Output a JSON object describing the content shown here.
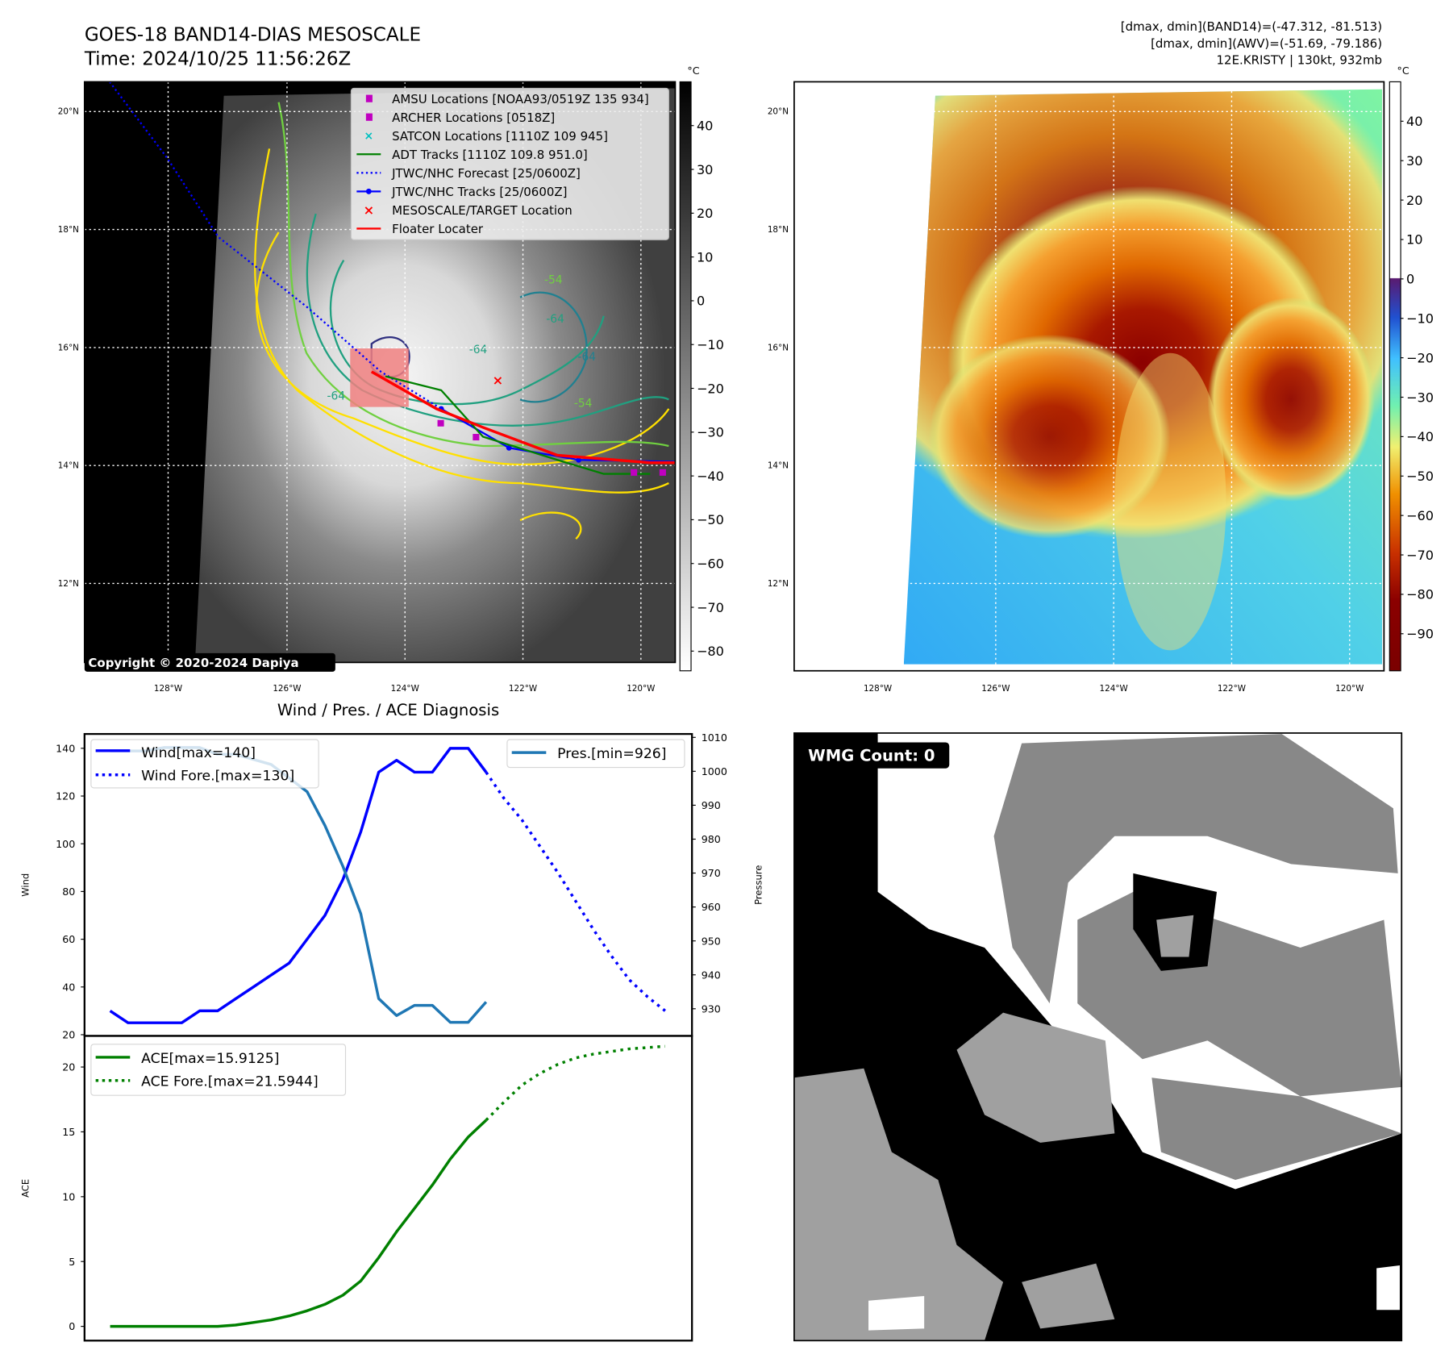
{
  "header": {
    "title": "GOES-18 BAND14-DIAS MESOSCALE",
    "time": "Time: 2024/10/25 11:56:26Z",
    "stats_band14": "[dmax, dmin](BAND14)=(-47.312, -81.513)",
    "stats_awv": "[dmax, dmin](AWV)=(-51.69, -79.186)",
    "storm": "12E.KRISTY | 130kt, 932mb"
  },
  "map": {
    "lat_labels": [
      "20°N",
      "18°N",
      "16°N",
      "14°N",
      "12°N"
    ],
    "lon_labels": [
      "128°W",
      "126°W",
      "124°W",
      "122°W",
      "120°W"
    ],
    "colorbar_unit": "°C",
    "gray_colorbar_ticks": [
      "40",
      "30",
      "20",
      "10",
      "0",
      "−10",
      "−20",
      "−30",
      "−40",
      "−50",
      "−60",
      "−70",
      "−80"
    ],
    "color_colorbar_ticks": [
      "40",
      "30",
      "20",
      "10",
      "0",
      "−10",
      "−20",
      "−30",
      "−40",
      "−50",
      "−60",
      "−70",
      "−80",
      "−90"
    ],
    "copyright": "Copyright © 2020-2024 Dapiya",
    "legend": [
      {
        "label": "AMSU Locations [NOAA93/0519Z 135 934]",
        "color": "#c000c0"
      },
      {
        "label": "ARCHER Locations [0518Z]",
        "color": "#c000c0"
      },
      {
        "label": "SATCON Locations [1110Z 109 945]",
        "color": "#00c0c0"
      },
      {
        "label": "ADT Tracks [1110Z 109.8 951.0]",
        "color": "#008000"
      },
      {
        "label": "JTWC/NHC Forecast [25/0600Z]",
        "color": "#0000ff"
      },
      {
        "label": "JTWC/NHC Tracks [25/0600Z]",
        "color": "#0000ff"
      },
      {
        "label": "MESOSCALE/TARGET Location",
        "color": "#ff0000"
      },
      {
        "label": "Floater Locater",
        "color": "#ff0000"
      }
    ],
    "contour_labels": [
      "-54",
      "-64",
      "-64",
      "-54",
      "-64",
      "-64"
    ]
  },
  "wmg": {
    "label": "WMG Count: 0"
  },
  "chart_data": [
    {
      "type": "line",
      "title": "Wind / Pres. / ACE Diagnosis",
      "ylabel": "Wind",
      "y2label": "Pressure",
      "ylim": [
        19.5,
        146
      ],
      "y2lim": [
        922,
        1011
      ],
      "xlim": [
        -1.43,
        32.5
      ],
      "yticks": [
        20,
        40,
        60,
        80,
        100,
        120,
        140
      ],
      "y2ticks": [
        930,
        940,
        950,
        960,
        970,
        980,
        990,
        1000,
        1010
      ],
      "series": [
        {
          "name": "Wind[max=140]",
          "color": "#0000ff",
          "style": "solid",
          "x0": 0,
          "values": [
            30,
            25,
            25,
            25,
            25,
            30,
            30,
            35,
            40,
            45,
            50,
            60,
            70,
            85,
            105,
            130,
            135,
            130,
            130,
            140,
            140,
            130
          ]
        },
        {
          "name": "Wind Fore.[max=130]",
          "color": "#0000ff",
          "style": "dotted",
          "x0": 21,
          "values": [
            130,
            119,
            110,
            99,
            88,
            76,
            64,
            53,
            43,
            36,
            30
          ]
        },
        {
          "name": "Pres.[min=926]",
          "color": "#1f77b4",
          "style": "solid",
          "axis": "y2",
          "x0": 0,
          "values": [
            1006,
            1006,
            1006,
            1007,
            1007,
            1007,
            1005,
            1005,
            1003.5,
            1002,
            998,
            994,
            984,
            972,
            958,
            933,
            928,
            931,
            931,
            926,
            926,
            932
          ]
        }
      ]
    },
    {
      "type": "line",
      "ylabel": "ACE",
      "ylim": [
        -1.1,
        22.4
      ],
      "xlim": [
        -1.43,
        32.5
      ],
      "yticks": [
        0,
        5,
        10,
        15,
        20
      ],
      "series": [
        {
          "name": "ACE[max=15.9125]",
          "color": "#008000",
          "style": "solid",
          "x0": 0,
          "values": [
            0,
            0,
            0,
            0,
            0,
            0,
            0,
            0.1,
            0.3,
            0.5,
            0.8,
            1.2,
            1.7,
            2.4,
            3.5,
            5.3,
            7.3,
            9.1,
            10.9,
            12.9,
            14.6,
            15.9
          ]
        },
        {
          "name": "ACE Fore.[max=21.5944]",
          "color": "#008000",
          "style": "dotted",
          "x0": 21,
          "values": [
            15.9,
            17.3,
            18.6,
            19.5,
            20.2,
            20.7,
            21.0,
            21.2,
            21.4,
            21.5,
            21.6
          ]
        }
      ]
    }
  ]
}
